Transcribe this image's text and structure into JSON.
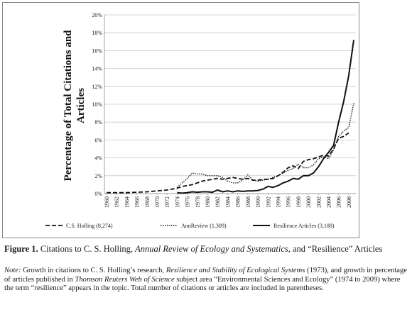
{
  "chart_data": {
    "type": "line",
    "ylabel": "Percentage of Total Citations and Articles",
    "ylim": [
      0,
      20
    ],
    "yticks": [
      "0%",
      "2%",
      "4%",
      "6%",
      "8%",
      "10%",
      "12%",
      "14%",
      "16%",
      "18%",
      "20%"
    ],
    "xlim": [
      1960,
      2009
    ],
    "xticks": [
      "1960",
      "1962",
      "1964",
      "1966",
      "1968",
      "1970",
      "1972",
      "1974",
      "1976",
      "1978",
      "1980",
      "1982",
      "1984",
      "1986",
      "1988",
      "1990",
      "1992",
      "1994",
      "1996",
      "1998",
      "2000",
      "2002",
      "2004",
      "2006",
      "2008"
    ],
    "grid": "horizontal",
    "legend_position": "bottom",
    "series": [
      {
        "name": "C.S. Holling (8,274)",
        "style": "dashed",
        "points": [
          [
            1960,
            0.1
          ],
          [
            1962,
            0.1
          ],
          [
            1964,
            0.1
          ],
          [
            1966,
            0.15
          ],
          [
            1968,
            0.2
          ],
          [
            1970,
            0.3
          ],
          [
            1972,
            0.4
          ],
          [
            1974,
            0.6
          ],
          [
            1975,
            0.8
          ],
          [
            1976,
            0.9
          ],
          [
            1977,
            1.0
          ],
          [
            1978,
            1.2
          ],
          [
            1979,
            1.4
          ],
          [
            1980,
            1.5
          ],
          [
            1981,
            1.6
          ],
          [
            1982,
            1.7
          ],
          [
            1983,
            1.6
          ],
          [
            1984,
            1.7
          ],
          [
            1985,
            1.8
          ],
          [
            1986,
            1.7
          ],
          [
            1987,
            1.6
          ],
          [
            1988,
            1.7
          ],
          [
            1989,
            1.5
          ],
          [
            1990,
            1.5
          ],
          [
            1991,
            1.6
          ],
          [
            1992,
            1.6
          ],
          [
            1993,
            1.7
          ],
          [
            1994,
            2.0
          ],
          [
            1995,
            2.4
          ],
          [
            1996,
            2.9
          ],
          [
            1997,
            3.1
          ],
          [
            1998,
            2.8
          ],
          [
            1999,
            3.6
          ],
          [
            2000,
            3.8
          ],
          [
            2001,
            3.9
          ],
          [
            2002,
            4.1
          ],
          [
            2003,
            4.3
          ],
          [
            2004,
            4.2
          ],
          [
            2005,
            5.0
          ],
          [
            2006,
            6.2
          ],
          [
            2007,
            6.4
          ],
          [
            2008,
            6.8
          ]
        ]
      },
      {
        "name": "AnnReview (1,309)",
        "style": "dotted",
        "points": [
          [
            1974,
            0.7
          ],
          [
            1975,
            1.2
          ],
          [
            1976,
            1.7
          ],
          [
            1977,
            2.3
          ],
          [
            1978,
            2.2
          ],
          [
            1979,
            2.2
          ],
          [
            1980,
            2.0
          ],
          [
            1981,
            2.0
          ],
          [
            1982,
            2.0
          ],
          [
            1983,
            1.8
          ],
          [
            1984,
            1.4
          ],
          [
            1985,
            1.2
          ],
          [
            1986,
            1.2
          ],
          [
            1987,
            1.5
          ],
          [
            1988,
            2.1
          ],
          [
            1989,
            1.5
          ],
          [
            1990,
            1.4
          ],
          [
            1991,
            1.5
          ],
          [
            1992,
            1.6
          ],
          [
            1993,
            1.8
          ],
          [
            1994,
            2.0
          ],
          [
            1995,
            2.3
          ],
          [
            1996,
            2.6
          ],
          [
            1997,
            2.8
          ],
          [
            1998,
            3.3
          ],
          [
            1999,
            2.9
          ],
          [
            2000,
            2.9
          ],
          [
            2001,
            3.2
          ],
          [
            2002,
            3.9
          ],
          [
            2003,
            4.1
          ],
          [
            2004,
            3.9
          ],
          [
            2005,
            4.9
          ],
          [
            2006,
            6.4
          ],
          [
            2007,
            7.0
          ],
          [
            2008,
            7.4
          ],
          [
            2009,
            10.1
          ]
        ]
      },
      {
        "name": "Resilience Articles (3,188)",
        "style": "solid",
        "points": [
          [
            1974,
            0.1
          ],
          [
            1975,
            0.05
          ],
          [
            1976,
            0.1
          ],
          [
            1977,
            0.2
          ],
          [
            1978,
            0.15
          ],
          [
            1979,
            0.2
          ],
          [
            1980,
            0.2
          ],
          [
            1981,
            0.15
          ],
          [
            1982,
            0.4
          ],
          [
            1983,
            0.2
          ],
          [
            1984,
            0.3
          ],
          [
            1985,
            0.2
          ],
          [
            1986,
            0.3
          ],
          [
            1987,
            0.25
          ],
          [
            1988,
            0.3
          ],
          [
            1989,
            0.3
          ],
          [
            1990,
            0.35
          ],
          [
            1991,
            0.5
          ],
          [
            1992,
            0.8
          ],
          [
            1993,
            0.7
          ],
          [
            1994,
            0.9
          ],
          [
            1995,
            1.2
          ],
          [
            1996,
            1.4
          ],
          [
            1997,
            1.7
          ],
          [
            1998,
            1.6
          ],
          [
            1999,
            2.0
          ],
          [
            2000,
            2.0
          ],
          [
            2001,
            2.3
          ],
          [
            2002,
            3.0
          ],
          [
            2003,
            3.9
          ],
          [
            2004,
            4.6
          ],
          [
            2005,
            5.4
          ],
          [
            2006,
            8.0
          ],
          [
            2007,
            10.3
          ],
          [
            2008,
            13.2
          ],
          [
            2009,
            17.2
          ]
        ]
      }
    ]
  },
  "caption": {
    "figure_number": "Figure 1.",
    "text_1": " Citations to C. S. Holling, ",
    "text_italic": "Annual Review of Ecology and Systematics,",
    "text_2": " and “Resilience” Articles"
  },
  "note": {
    "label": "Note:",
    "text_1": " Growth in citations to C. S. Holling’s research, ",
    "italic_1": "Resilience and Stability of Ecological Systems",
    "text_2": " (1973), and growth in percentage of articles published in ",
    "italic_2": "Thomson Reuters Web of Science",
    "text_3": " subject area “Environmental Sciences and Ecology” (1974 to 2009) where the term “resilience” appears in the topic. Total number of citations or articles are included in parentheses."
  }
}
